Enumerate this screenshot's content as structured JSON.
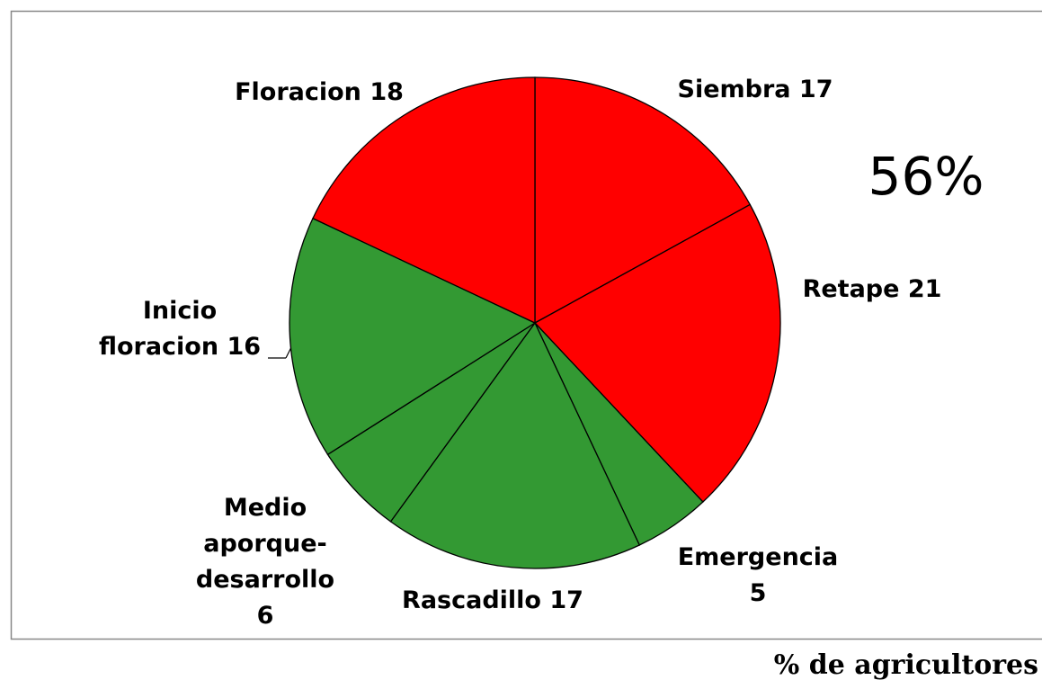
{
  "chart_data": {
    "type": "pie",
    "categories": [
      "Siembra",
      "Retape",
      "Emergencia",
      "Rascadillo",
      "Medio aporque-desarrollo",
      "Inicio floracion",
      "Floracion"
    ],
    "values": [
      17,
      21,
      5,
      17,
      6,
      16,
      18
    ],
    "colors": [
      "#ff0000",
      "#ff0000",
      "#339933",
      "#339933",
      "#339933",
      "#339933",
      "#ff0000"
    ],
    "annotation": "56%",
    "footer": "% de agricultores"
  }
}
